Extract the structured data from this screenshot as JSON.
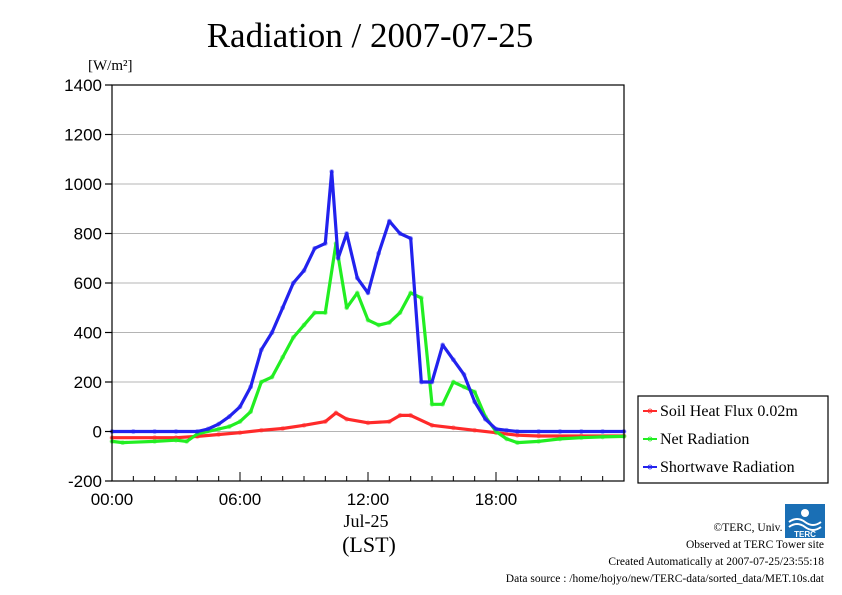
{
  "chart_data": {
    "type": "line",
    "title": "Radiation / 2007-07-25",
    "ylabel_unit": "[W/m²]",
    "ylim": [
      -200,
      1400
    ],
    "yticks": [
      -200,
      0,
      200,
      400,
      600,
      800,
      1000,
      1200,
      1400
    ],
    "x_hours_range": [
      0,
      24
    ],
    "xtick_hours": [
      0,
      6,
      12,
      18
    ],
    "xtick_labels": [
      "00:00",
      "06:00",
      "12:00",
      "18:00"
    ],
    "x_date_label": "Jul-25",
    "x_axis_label": "(LST)",
    "grid": true,
    "legend_position": "right",
    "series": [
      {
        "name": "Soil Heat Flux 0.02m",
        "color": "#ff2a2a",
        "x": [
          0,
          2,
          3,
          4,
          5,
          6,
          7,
          8,
          9,
          10,
          10.5,
          11,
          12,
          13,
          13.5,
          14,
          15,
          16,
          17,
          18,
          19,
          20,
          22,
          24
        ],
        "values": [
          -25,
          -25,
          -25,
          -20,
          -12,
          -5,
          5,
          12,
          25,
          40,
          75,
          50,
          35,
          40,
          65,
          65,
          25,
          15,
          5,
          -5,
          -15,
          -18,
          -18,
          -18
        ]
      },
      {
        "name": "Net Radiation",
        "color": "#22ee22",
        "x": [
          0,
          0.5,
          2,
          3,
          3.5,
          4,
          5,
          5.5,
          6,
          6.5,
          7,
          7.5,
          8,
          8.5,
          9,
          9.5,
          10,
          10.5,
          11,
          11.5,
          12,
          12.5,
          13,
          13.5,
          14,
          14.5,
          15,
          15.5,
          16,
          16.5,
          17,
          17.5,
          18,
          18.5,
          19,
          20,
          21,
          22,
          23,
          24
        ],
        "values": [
          -40,
          -45,
          -40,
          -35,
          -40,
          -10,
          10,
          20,
          40,
          80,
          200,
          220,
          300,
          380,
          430,
          480,
          480,
          760,
          500,
          560,
          450,
          430,
          440,
          480,
          560,
          540,
          110,
          110,
          200,
          180,
          160,
          60,
          0,
          -30,
          -45,
          -40,
          -30,
          -25,
          -22,
          -20
        ]
      },
      {
        "name": "Shortwave Radiation",
        "color": "#2222ee",
        "x": [
          0,
          1,
          2,
          3,
          4,
          4.5,
          5,
          5.5,
          6,
          6.5,
          7,
          7.5,
          8,
          8.5,
          9,
          9.5,
          10,
          10.3,
          10.6,
          11,
          11.5,
          12,
          12.5,
          13,
          13.5,
          14,
          14.5,
          15,
          15.5,
          16,
          16.5,
          17,
          17.5,
          18,
          18.5,
          19,
          20,
          21,
          22,
          23,
          24
        ],
        "values": [
          0,
          0,
          0,
          0,
          0,
          10,
          30,
          60,
          100,
          180,
          330,
          400,
          500,
          600,
          650,
          740,
          760,
          1050,
          700,
          800,
          620,
          560,
          720,
          850,
          800,
          780,
          200,
          200,
          350,
          290,
          230,
          120,
          50,
          10,
          5,
          0,
          0,
          0,
          0,
          0,
          0
        ]
      }
    ]
  },
  "credits": {
    "copyright": "©TERC, Univ. Tsukuba",
    "observed": "Observed at TERC Tower site",
    "created": "Created Automatically at 2007-07-25/23:55:18",
    "source": "Data source : /home/hojyo/new/TERC-data/sorted_data/MET.10s.dat"
  },
  "logo": {
    "text": "TERC",
    "color": "#1a6fb5"
  }
}
